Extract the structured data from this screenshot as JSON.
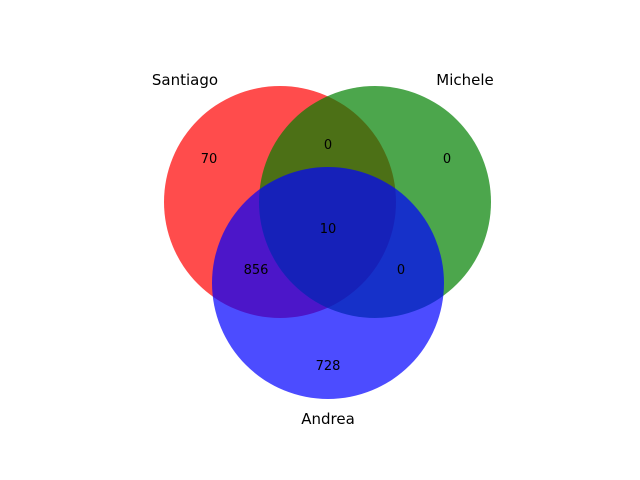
{
  "venn": {
    "sets": [
      {
        "name": "Santiago",
        "color": "#ff0000"
      },
      {
        "name": "Michele",
        "color": "#008000"
      },
      {
        "name": "Andrea",
        "color": "#0000ff"
      }
    ],
    "regions": {
      "santiago_only": "70",
      "michele_only": "0",
      "andrea_only": "728",
      "santiago_michele": "0",
      "santiago_andrea": "856",
      "michele_andrea": "0",
      "all_three": "10"
    },
    "opacity": 0.7
  }
}
